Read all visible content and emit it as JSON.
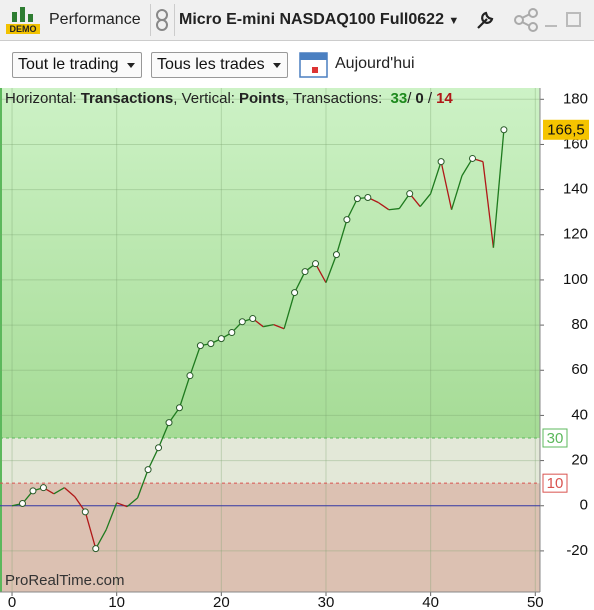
{
  "toolbar": {
    "badge": "DEMO",
    "panel": "Performance",
    "instrument": "Micro E-mini NASDAQ100 Full0622"
  },
  "filters": {
    "scope": "Tout le trading",
    "trades": "Tous les trades",
    "period": "Aujourd'hui"
  },
  "info": {
    "h_label": "Horizontal:",
    "h_value": "Transactions",
    "v_label": ", Vertical:",
    "v_value": "Points",
    "t_label": ", Transactions:",
    "wins": "33",
    "sep1": "/",
    "even": "0",
    "sep2": "/",
    "losses": "14"
  },
  "chart_data": {
    "type": "line",
    "watermark": "ProRealTime.com",
    "x": [
      0,
      1,
      2,
      3,
      4,
      5,
      6,
      7,
      8,
      9,
      10,
      11,
      12,
      13,
      14,
      15,
      16,
      17,
      18,
      19,
      20,
      21,
      22,
      23,
      24,
      25,
      26,
      27,
      28,
      29,
      30,
      31,
      32,
      33,
      34,
      35,
      36,
      37,
      38,
      39,
      40,
      41,
      42,
      43,
      44,
      45,
      46,
      47
    ],
    "series": [
      {
        "name": "Points",
        "up_color": "#1e7a1e",
        "down_color": "#b01818",
        "values": [
          0,
          1,
          6.6,
          8,
          5.3,
          8,
          4,
          -2.7,
          -19,
          -10.6,
          1.3,
          -0.4,
          3.5,
          16,
          25.7,
          36.8,
          43.4,
          57.6,
          70.9,
          71.8,
          74,
          76.7,
          81.5,
          82.9,
          79.3,
          80.2,
          78.4,
          94.4,
          103.7,
          107.2,
          98.8,
          111.2,
          126.7,
          136,
          136.5,
          134.3,
          131.1,
          131.6,
          138.2,
          132.5,
          138.2,
          152.4,
          131.1,
          146.2,
          153.8,
          152.4,
          114.3,
          166.5
        ],
        "circled": [
          1,
          2,
          3,
          7,
          8,
          13,
          14,
          15,
          16,
          17,
          18,
          19,
          20,
          21,
          22,
          23,
          27,
          28,
          29,
          31,
          32,
          33,
          34,
          38,
          41,
          44,
          47
        ]
      }
    ],
    "last_value": 166.5,
    "last_value_label": "166,5",
    "thresholds": [
      {
        "value": 30,
        "color": "#5cb85c"
      },
      {
        "value": 10,
        "color": "#d9534f"
      }
    ],
    "zero_line_color": "#3a3aa8",
    "xlim": [
      -1.15,
      50.45
    ],
    "xticks": [
      0,
      10,
      20,
      30,
      40,
      50
    ],
    "ylim": [
      -38.2,
      185
    ],
    "yticks": [
      -20,
      0,
      20,
      40,
      60,
      80,
      100,
      120,
      140,
      160,
      180
    ],
    "grid": true
  }
}
